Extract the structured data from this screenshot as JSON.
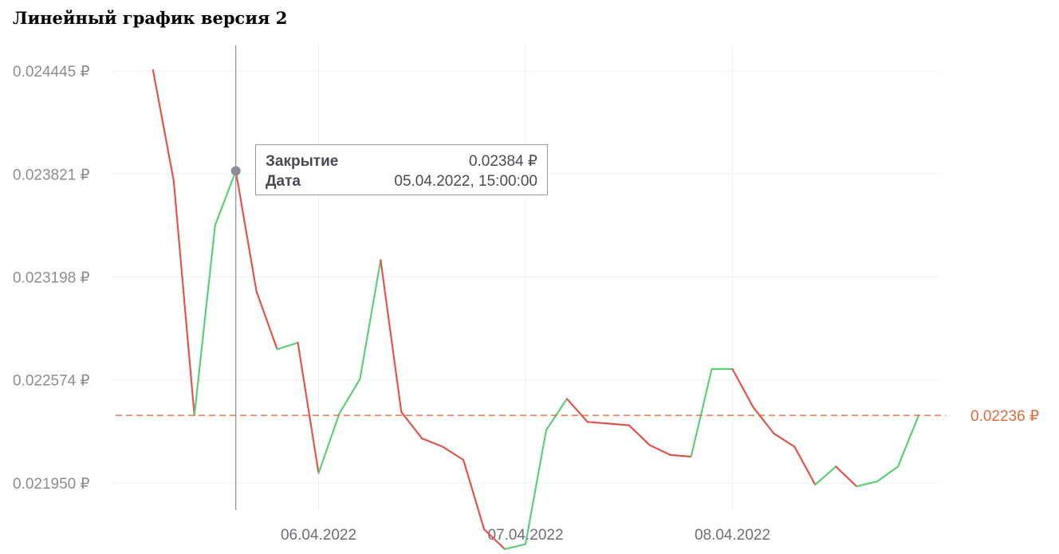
{
  "title": "Линейный график версия 2",
  "tooltip": {
    "close_label": "Закрытие",
    "close_value": "0.02384 ₽",
    "date_label": "Дата",
    "date_value": "05.04.2022, 15:00:00"
  },
  "last_price_label": "0.02236 ₽",
  "colors": {
    "up": "#5ccf76",
    "down": "#e0554c",
    "last": "#e06a3c",
    "grid": "#efeff2",
    "cursor": "#8c8c99"
  },
  "chart_data": {
    "type": "line",
    "title": "Линейный график версия 2",
    "y_ticks": [
      "0.024445 ₽",
      "0.023821 ₽",
      "0.023198 ₽",
      "0.022574 ₽",
      "0.021950 ₽"
    ],
    "y_tick_values": [
      0.024445,
      0.023821,
      0.023198,
      0.022574,
      0.02195
    ],
    "x_ticks": [
      "06.04.2022",
      "07.04.2022",
      "08.04.2022"
    ],
    "x_tick_values": [
      3.0,
      4.0,
      5.0
    ],
    "ylim": [
      0.02195,
      0.024445
    ],
    "xlim": [
      2.0,
      6.0
    ],
    "last_value": 0.02236,
    "selected_index": 4,
    "series": [
      {
        "x": [
          2.2,
          2.3,
          2.4,
          2.5,
          2.6,
          2.7,
          2.8,
          2.9,
          3.0,
          3.1,
          3.2,
          3.3,
          3.4,
          3.5,
          3.6,
          3.7,
          3.8,
          3.9,
          4.0,
          4.1,
          4.2,
          4.3,
          4.4,
          4.5,
          4.6,
          4.7,
          4.8,
          4.9,
          5.0,
          5.1,
          5.2,
          5.3,
          5.4,
          5.5,
          5.6,
          5.7,
          5.8,
          5.9
        ],
        "values": [
          0.02445,
          0.02378,
          0.02236,
          0.02351,
          0.02384,
          0.02311,
          0.02276,
          0.0228,
          0.02201,
          0.02237,
          0.02258,
          0.0233,
          0.02238,
          0.02222,
          0.02217,
          0.02209,
          0.02167,
          0.02155,
          0.02158,
          0.02227,
          0.02246,
          0.02232,
          0.02231,
          0.0223,
          0.02218,
          0.02212,
          0.02211,
          0.02264,
          0.02264,
          0.02241,
          0.02225,
          0.02217,
          0.02194,
          0.02205,
          0.02193,
          0.02196,
          0.02205,
          0.02236
        ]
      }
    ]
  }
}
